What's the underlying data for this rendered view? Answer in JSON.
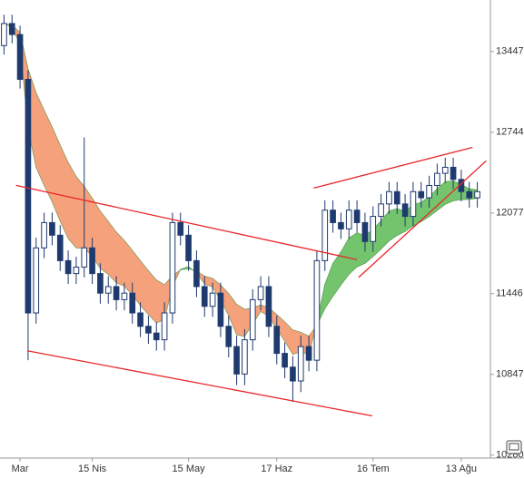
{
  "chart_data": {
    "type": "candlestick",
    "log_scale": true,
    "categories": [
      null,
      null,
      "Mar",
      null,
      null,
      null,
      null,
      null,
      null,
      null,
      null,
      "15 Nis",
      null,
      null,
      null,
      null,
      null,
      null,
      null,
      null,
      null,
      null,
      null,
      "15 May",
      null,
      null,
      null,
      null,
      null,
      null,
      null,
      null,
      null,
      null,
      "17 Haz",
      null,
      null,
      null,
      null,
      null,
      null,
      null,
      null,
      null,
      null,
      null,
      "16 Tem",
      null,
      null,
      null,
      null,
      null,
      null,
      null,
      null,
      null,
      null,
      "13 Ağu",
      null,
      null
    ],
    "open": [
      13500,
      13700,
      13600,
      13200,
      11300,
      11800,
      12000,
      11900,
      11700,
      11600,
      11650,
      11800,
      11600,
      11450,
      11500,
      11400,
      11450,
      11300,
      11200,
      11150,
      11100,
      11300,
      12000,
      11900,
      11700,
      11500,
      11350,
      11450,
      11200,
      11050,
      10850,
      11100,
      11400,
      11500,
      11200,
      11000,
      10900,
      10800,
      11050,
      10950,
      11700,
      12100,
      12000,
      11950,
      12100,
      12000,
      11850,
      12050,
      12150,
      12250,
      12150,
      12050,
      12250,
      12200,
      12300,
      12400,
      12450,
      12350,
      12250,
      12200
    ],
    "high": [
      13780,
      13780,
      13680,
      13280,
      11880,
      12080,
      12080,
      11980,
      11780,
      11730,
      12700,
      11880,
      11680,
      11580,
      11580,
      11530,
      11530,
      11380,
      11280,
      11230,
      11380,
      12080,
      12080,
      11980,
      11780,
      11580,
      11530,
      11530,
      11280,
      11130,
      11180,
      11480,
      11580,
      11580,
      11280,
      11080,
      10980,
      11130,
      11130,
      11780,
      12180,
      12180,
      12080,
      12180,
      12180,
      12080,
      12130,
      12230,
      12330,
      12330,
      12230,
      12330,
      12330,
      12380,
      12480,
      12530,
      12530,
      12430,
      12330,
      12330
    ],
    "low": [
      13420,
      13520,
      13120,
      10950,
      11220,
      11720,
      11820,
      11620,
      11520,
      11520,
      11570,
      11520,
      11370,
      11370,
      11320,
      11320,
      11220,
      11120,
      11070,
      11020,
      11020,
      11220,
      11820,
      11620,
      11420,
      11270,
      11270,
      11120,
      10970,
      10770,
      10770,
      11020,
      11320,
      11120,
      10920,
      10820,
      10650,
      10720,
      10870,
      10870,
      11620,
      11920,
      11870,
      11870,
      11920,
      11770,
      11770,
      11970,
      12070,
      12070,
      11970,
      11970,
      12120,
      12120,
      12220,
      12320,
      12270,
      12170,
      12120,
      12120
    ],
    "close": [
      13700,
      13600,
      13200,
      11300,
      11800,
      12000,
      11900,
      11700,
      11600,
      11650,
      11800,
      11600,
      11450,
      11500,
      11400,
      11450,
      11300,
      11200,
      11150,
      11100,
      11300,
      12000,
      11900,
      11700,
      11500,
      11350,
      11450,
      11200,
      11050,
      10850,
      11100,
      11400,
      11500,
      11200,
      11000,
      10900,
      10800,
      11050,
      10950,
      11700,
      12100,
      12000,
      11950,
      12100,
      12000,
      11850,
      12050,
      12150,
      12250,
      12150,
      12050,
      12250,
      12200,
      12300,
      12400,
      12450,
      12350,
      12250,
      12200,
      12250
    ],
    "band": {
      "fast": [
        13700,
        13667,
        13511,
        12774,
        12449,
        12300,
        12167,
        12011,
        11874,
        11799,
        11799,
        11733,
        11639,
        11593,
        11529,
        11503,
        11435,
        11357,
        11288,
        11225,
        11250,
        11500,
        11633,
        11655,
        11603,
        11519,
        11496,
        11397,
        11281,
        11137,
        11125,
        11217,
        11311,
        11274,
        11183,
        11089,
        10993,
        11012,
        10991,
        11227,
        11518,
        11679,
        11769,
        11879,
        11919,
        11896,
        11947,
        12015,
        12093,
        12112,
        12091,
        12144,
        12163,
        12209,
        12273,
        12332,
        12338,
        12309,
        12273,
        12265
      ],
      "slow": [
        13700,
        13686,
        13618,
        13293,
        13084,
        12933,
        12789,
        12636,
        12491,
        12374,
        12294,
        12197,
        12093,
        12010,
        11925,
        11859,
        11781,
        11700,
        11623,
        11550,
        11515,
        11583,
        11628,
        11638,
        11619,
        11581,
        11563,
        11513,
        11448,
        11365,
        11328,
        11338,
        11361,
        11339,
        11289,
        11234,
        11173,
        11156,
        11127,
        11207,
        11332,
        11425,
        11512,
        11594,
        11651,
        11679,
        11731,
        11790,
        11854,
        11898,
        11930,
        11975,
        12007,
        12048,
        12097,
        12146,
        12175,
        12185,
        12187,
        12196
      ],
      "up_color": "#74c46e",
      "down_color": "#f5a27c",
      "line_color": "#3f8a3a"
    },
    "trendlines": [
      {
        "x": [
          1.5,
          44.0
        ],
        "y": [
          12301,
          11708
        ]
      },
      {
        "x": [
          2.9,
          45.9
        ],
        "y": [
          11019,
          10552
        ]
      },
      {
        "x": [
          38.6,
          58.4
        ],
        "y": [
          12279,
          12616
        ]
      },
      {
        "x": [
          44.2,
          60.1
        ],
        "y": [
          11570,
          12503
        ]
      }
    ],
    "trendline_color": "#e8272a",
    "up_candle_color": "#ffffff",
    "down_candle_color": "#1f3a6e",
    "ylim": [
      10260,
      13916
    ],
    "yticks": [
      13447,
      12744,
      12077,
      11446,
      10847,
      10280
    ]
  }
}
